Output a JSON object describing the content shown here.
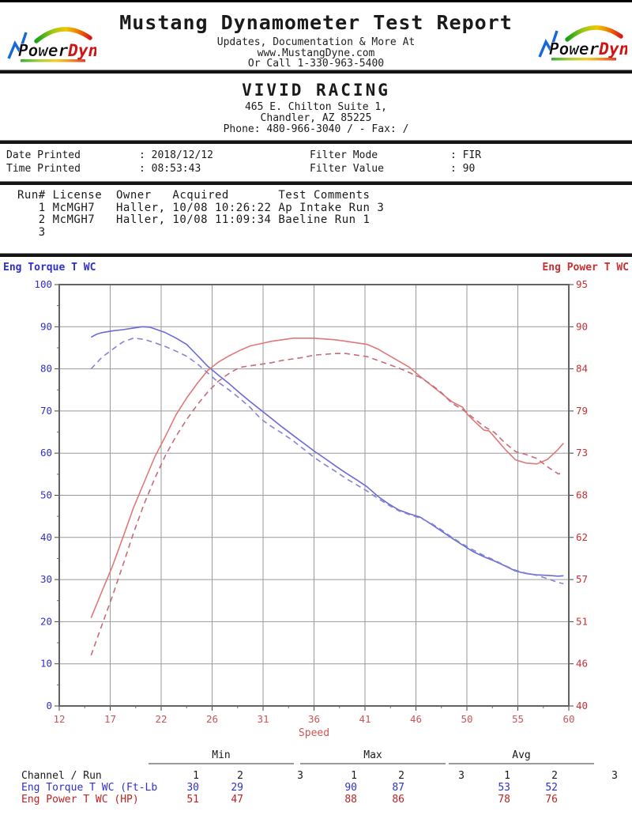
{
  "header": {
    "title": "Mustang Dynamometer Test Report",
    "subtitle1": "Updates, Documentation & More At",
    "subtitle2": "www.MustangDyne.com",
    "subtitle3": "Or Call 1-330-963-5400",
    "logo": {
      "text_black": "Power",
      "text_red": "Dyne"
    }
  },
  "company": {
    "name": "VIVID RACING",
    "address1": "465 E. Chilton Suite 1,",
    "address2": "Chandler, AZ  85225",
    "phone": "Phone: 480-966-3040 /  - Fax:  /"
  },
  "info": {
    "left": [
      {
        "label": "Date Printed",
        "value": ": 2018/12/12"
      },
      {
        "label": "Time Printed",
        "value": ": 08:53:43"
      }
    ],
    "right": [
      {
        "label": "Filter Mode",
        "value": ": FIR"
      },
      {
        "label": "Filter Value",
        "value": ": 90"
      }
    ]
  },
  "runs": {
    "headers": [
      "Run#",
      "License",
      "Owner",
      "Acquired",
      "Test Comments"
    ],
    "rows": [
      [
        "1",
        "McMGH7",
        "Haller,",
        "10/08 10:26:22",
        "Ap Intake Run 3"
      ],
      [
        "2",
        "McMGH7",
        "Haller,",
        "10/08 11:09:34",
        "Baeline Run 1"
      ],
      [
        "3",
        "",
        "",
        "",
        ""
      ]
    ]
  },
  "chart_data": {
    "type": "line",
    "xlabel": "Speed",
    "grid": true,
    "x_axis": {
      "range": [
        12,
        60
      ],
      "ticks": [
        "12",
        "17",
        "22",
        "26",
        "31",
        "36",
        "41",
        "46",
        "50",
        "55",
        "60"
      ],
      "color": "#cc5555"
    },
    "left_axis": {
      "label": "Eng Torque T WC",
      "range": [
        0,
        100
      ],
      "ticks": [
        "100",
        "90",
        "80",
        "70",
        "60",
        "50",
        "40",
        "30",
        "20",
        "10",
        "0"
      ],
      "color": "#3030c8"
    },
    "right_axis": {
      "label": "Eng Power T WC",
      "range": [
        40,
        95
      ],
      "ticks": [
        "95",
        "90",
        "84",
        "79",
        "73",
        "68",
        "62",
        "57",
        "51",
        "46",
        "40"
      ],
      "color": "#c83030"
    },
    "series": [
      {
        "name": "Eng Torque T WC Run 1",
        "axis": "left",
        "style": "solid",
        "color": "#6a6ad8",
        "points": [
          [
            15,
            87.5
          ],
          [
            15.5,
            88.2
          ],
          [
            16,
            88.6
          ],
          [
            17,
            89
          ],
          [
            18,
            89.3
          ],
          [
            19,
            89.7
          ],
          [
            19.8,
            90
          ],
          [
            20.5,
            89.9
          ],
          [
            21,
            89.5
          ],
          [
            22,
            88.6
          ],
          [
            23,
            87.3
          ],
          [
            24,
            85.8
          ],
          [
            25,
            83.2
          ],
          [
            26,
            80.6
          ],
          [
            27,
            78.5
          ],
          [
            28,
            76.5
          ],
          [
            29,
            74.3
          ],
          [
            30,
            72.2
          ],
          [
            31,
            70.2
          ],
          [
            32,
            68.2
          ],
          [
            33,
            66.2
          ],
          [
            34,
            64.3
          ],
          [
            35,
            62.4
          ],
          [
            36,
            60.5
          ],
          [
            37,
            58.8
          ],
          [
            38,
            57
          ],
          [
            39,
            55.3
          ],
          [
            40,
            53.7
          ],
          [
            41,
            52
          ],
          [
            42,
            49.8
          ],
          [
            43,
            48
          ],
          [
            44,
            46.5
          ],
          [
            45,
            45.6
          ],
          [
            46,
            44.8
          ],
          [
            47,
            43.2
          ],
          [
            48,
            41.5
          ],
          [
            49,
            39.8
          ],
          [
            50,
            38.2
          ],
          [
            51,
            36.6
          ],
          [
            52,
            35.4
          ],
          [
            53,
            34.4
          ],
          [
            54,
            33.2
          ],
          [
            55,
            32
          ],
          [
            56,
            31.4
          ],
          [
            57,
            31.1
          ],
          [
            58,
            31
          ],
          [
            59,
            30.8
          ],
          [
            59.5,
            30.9
          ]
        ]
      },
      {
        "name": "Eng Torque T WC Run 2",
        "axis": "left",
        "style": "dashed",
        "color": "#8484d2",
        "points": [
          [
            15,
            80
          ],
          [
            16,
            82.7
          ],
          [
            17,
            84.6
          ],
          [
            18,
            86.4
          ],
          [
            19,
            87.3
          ],
          [
            20,
            87
          ],
          [
            21,
            86.2
          ],
          [
            22,
            85.3
          ],
          [
            23,
            84.2
          ],
          [
            24,
            83
          ],
          [
            25,
            81.2
          ],
          [
            26,
            79
          ],
          [
            27,
            76.8
          ],
          [
            28,
            75
          ],
          [
            29,
            73
          ],
          [
            30,
            70.8
          ],
          [
            31,
            68.1
          ],
          [
            32,
            66.3
          ],
          [
            33,
            64.7
          ],
          [
            34,
            63
          ],
          [
            35,
            61
          ],
          [
            36,
            59
          ],
          [
            37,
            57.3
          ],
          [
            38,
            55.7
          ],
          [
            39,
            54
          ],
          [
            40,
            52.5
          ],
          [
            41,
            51
          ],
          [
            42,
            49.3
          ],
          [
            43,
            47.7
          ],
          [
            44,
            46.3
          ],
          [
            45,
            45.4
          ],
          [
            46,
            44.6
          ],
          [
            47,
            43.4
          ],
          [
            48,
            41.8
          ],
          [
            49,
            40
          ],
          [
            50,
            38.4
          ],
          [
            51,
            37
          ],
          [
            52,
            35.7
          ],
          [
            53,
            34.6
          ],
          [
            54,
            33.3
          ],
          [
            55,
            32.2
          ],
          [
            56,
            31.5
          ],
          [
            57,
            31
          ],
          [
            58,
            30.2
          ],
          [
            59,
            29.3
          ],
          [
            59.5,
            29
          ]
        ]
      },
      {
        "name": "Eng Power T WC Run 1",
        "axis": "right",
        "style": "solid",
        "color": "#e07878",
        "points": [
          [
            15,
            51.5
          ],
          [
            16,
            54.9
          ],
          [
            17,
            58.2
          ],
          [
            18,
            62
          ],
          [
            19,
            65.9
          ],
          [
            20,
            69.2
          ],
          [
            21,
            72.5
          ],
          [
            22,
            75.2
          ],
          [
            23,
            78
          ],
          [
            24,
            80.2
          ],
          [
            25,
            82.1
          ],
          [
            26,
            83.8
          ],
          [
            27,
            84.9
          ],
          [
            28,
            85.7
          ],
          [
            29,
            86.4
          ],
          [
            30,
            87
          ],
          [
            31,
            87.3
          ],
          [
            32,
            87.6
          ],
          [
            33,
            87.8
          ],
          [
            34,
            88
          ],
          [
            35,
            88
          ],
          [
            36,
            88
          ],
          [
            37,
            87.9
          ],
          [
            38,
            87.8
          ],
          [
            39,
            87.6
          ],
          [
            40,
            87.4
          ],
          [
            41,
            87.2
          ],
          [
            42,
            86.6
          ],
          [
            43,
            85.8
          ],
          [
            44,
            85
          ],
          [
            45,
            84.2
          ],
          [
            46,
            83
          ],
          [
            47,
            81.9
          ],
          [
            48,
            80.8
          ],
          [
            49,
            79.7
          ],
          [
            50,
            79
          ],
          [
            50.5,
            78
          ],
          [
            51,
            77.3
          ],
          [
            52,
            76
          ],
          [
            52.5,
            75.9
          ],
          [
            53,
            75.1
          ],
          [
            54,
            73.5
          ],
          [
            55,
            72.1
          ],
          [
            56,
            71.7
          ],
          [
            57,
            71.6
          ],
          [
            58,
            72.2
          ],
          [
            59,
            73.5
          ],
          [
            59.5,
            74.3
          ]
        ]
      },
      {
        "name": "Eng Power T WC Run 2",
        "axis": "right",
        "style": "dashed",
        "color": "#c46c78",
        "points": [
          [
            15,
            46.6
          ],
          [
            16,
            50.5
          ],
          [
            17,
            54.3
          ],
          [
            18,
            58.4
          ],
          [
            19,
            62.6
          ],
          [
            20,
            66.4
          ],
          [
            21,
            69.7
          ],
          [
            22,
            72.7
          ],
          [
            23,
            75.2
          ],
          [
            24,
            77.4
          ],
          [
            25,
            79.3
          ],
          [
            26,
            81
          ],
          [
            27,
            82.4
          ],
          [
            28,
            83.4
          ],
          [
            29,
            84.2
          ],
          [
            30,
            84.4
          ],
          [
            31,
            84.6
          ],
          [
            32,
            84.8
          ],
          [
            33,
            85.1
          ],
          [
            34,
            85.3
          ],
          [
            35,
            85.5
          ],
          [
            36,
            85.8
          ],
          [
            37,
            85.9
          ],
          [
            38,
            86
          ],
          [
            39,
            86
          ],
          [
            40,
            85.8
          ],
          [
            41,
            85.6
          ],
          [
            42,
            85.1
          ],
          [
            43,
            84.6
          ],
          [
            44,
            84.1
          ],
          [
            45,
            83.5
          ],
          [
            46,
            82.9
          ],
          [
            47,
            82
          ],
          [
            48,
            80.9
          ],
          [
            49,
            79.5
          ],
          [
            50,
            78.7
          ],
          [
            51,
            77.6
          ],
          [
            52,
            76.5
          ],
          [
            53,
            75.7
          ],
          [
            54,
            74.3
          ],
          [
            55,
            73.2
          ],
          [
            56,
            72.8
          ],
          [
            57,
            72.3
          ],
          [
            58,
            71.2
          ],
          [
            59,
            70.3
          ],
          [
            59.5,
            70.4
          ]
        ]
      }
    ]
  },
  "summary": {
    "groups": [
      "Min",
      "Max",
      "Avg"
    ],
    "channel_header": "Channel / Run",
    "run_numbers": [
      "1",
      "2",
      "3",
      "1",
      "2",
      "3",
      "1",
      "2",
      "3"
    ],
    "rows": [
      {
        "label": "Eng Torque T WC (Ft-Lb",
        "color": "#3030c8",
        "values": [
          "30",
          "29",
          "",
          "90",
          "87",
          "",
          "53",
          "52",
          ""
        ]
      },
      {
        "label": "Eng Power T WC (HP)",
        "color": "#c42020",
        "values": [
          "51",
          "47",
          "",
          "88",
          "86",
          "",
          "78",
          "76",
          ""
        ]
      }
    ]
  }
}
